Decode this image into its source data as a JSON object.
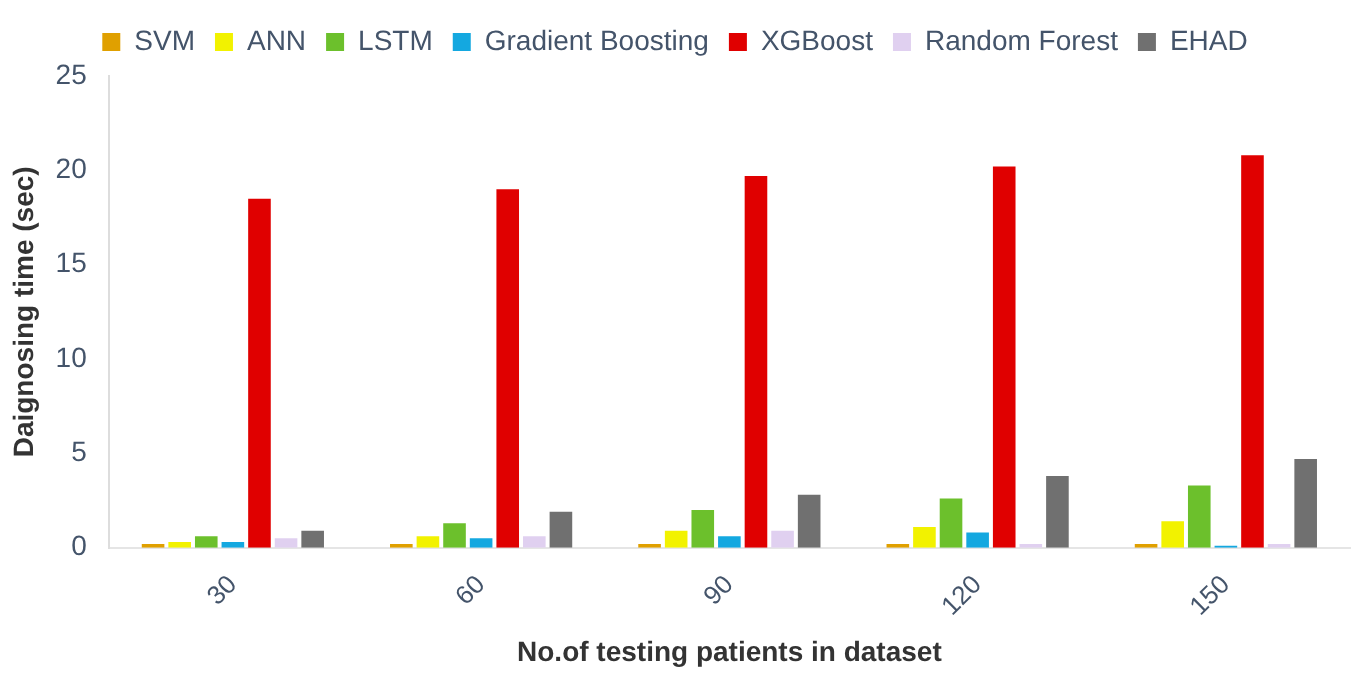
{
  "chart_data": {
    "type": "bar",
    "xlabel": "No.of testing patients in dataset",
    "ylabel": "Daignosing time (sec)",
    "categories": [
      "30",
      "60",
      "90",
      "120",
      "150"
    ],
    "series": [
      {
        "name": "SVM",
        "color": "#e0a000",
        "values": [
          0.2,
          0.2,
          0.2,
          0.2,
          0.2
        ]
      },
      {
        "name": "ANN",
        "color": "#f2f200",
        "values": [
          0.3,
          0.6,
          0.9,
          1.1,
          1.4
        ]
      },
      {
        "name": "LSTM",
        "color": "#6cc02c",
        "values": [
          0.6,
          1.3,
          2.0,
          2.6,
          3.3
        ]
      },
      {
        "name": "Gradient Boosting",
        "color": "#14a8e0",
        "values": [
          0.3,
          0.5,
          0.6,
          0.8,
          0.1
        ]
      },
      {
        "name": "XGBoost",
        "color": "#e00000",
        "values": [
          18.5,
          19,
          19.7,
          20.2,
          20.8
        ]
      },
      {
        "name": "Random Forest",
        "color": "#e0d0f0",
        "values": [
          0.5,
          0.6,
          0.9,
          0.2,
          0.2
        ]
      },
      {
        "name": "EHAD",
        "color": "#707070",
        "values": [
          0.9,
          1.9,
          2.8,
          3.8,
          4.7
        ]
      }
    ],
    "ylim": [
      0,
      25
    ],
    "yticks": [
      0,
      5,
      10,
      15,
      20,
      25
    ],
    "grid": false,
    "legend": "top"
  }
}
